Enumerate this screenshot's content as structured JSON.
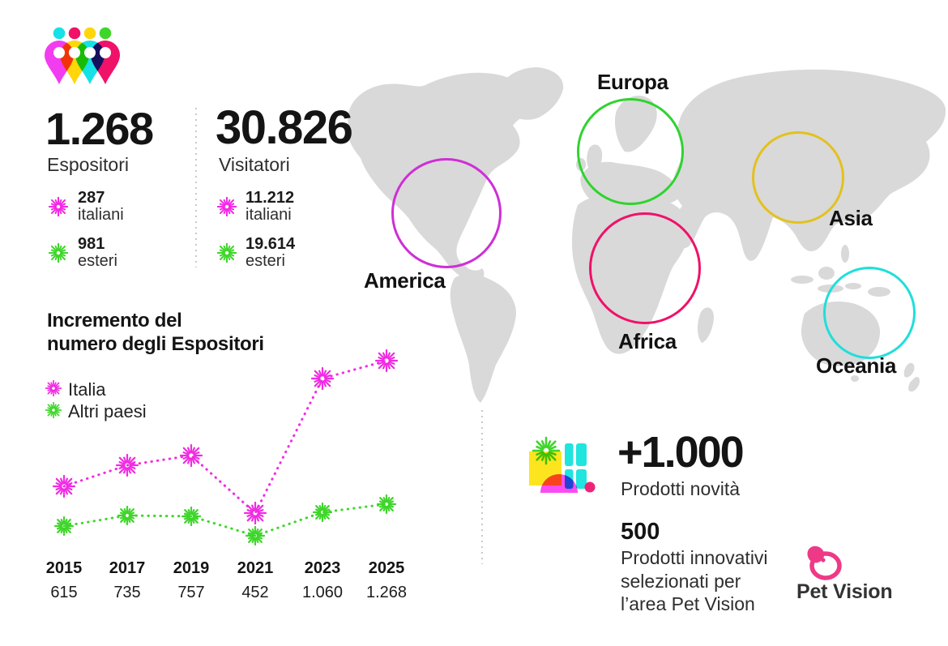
{
  "colors": {
    "text_dark": "#1A1A1A",
    "map_gray": "#D9D9D9",
    "divider": "#C9C9C9",
    "magenta": "#F22BE3",
    "green": "#3FD62B",
    "pin_magenta": "#F23CF0",
    "pin_yellow": "#FFD60A",
    "pin_cyan": "#17E0E6",
    "pin_crimson": "#F01168",
    "dot_cyan": "#17E0E6",
    "dot_crimson": "#F01168",
    "dot_yellow": "#FFD60A",
    "dot_green": "#3FD62B",
    "icon_yellow": "#FCE51E",
    "icon_cyan": "#1FE5DE",
    "icon_magenta": "#FA4BF0",
    "icon_green": "#3FD62B",
    "icon_dot_pink": "#F02277",
    "pet_pink": "#EE3A86"
  },
  "stats": {
    "espositori": {
      "value": "1.268",
      "label": "Espositori",
      "sub": [
        {
          "value": "287",
          "label": "italiani"
        },
        {
          "value": "981",
          "label": "esteri"
        }
      ]
    },
    "visitatori": {
      "value": "30.826",
      "label": "Visitatori",
      "sub": [
        {
          "value": "11.212",
          "label": "italiani"
        },
        {
          "value": "19.614",
          "label": "esteri"
        }
      ]
    }
  },
  "map": {
    "regions": [
      {
        "label": "America",
        "color": "#CE2FD6"
      },
      {
        "label": "Europa",
        "color": "#2FD32F"
      },
      {
        "label": "Africa",
        "color": "#F01168"
      },
      {
        "label": "Asia",
        "color": "#E3C11E"
      },
      {
        "label": "Oceania",
        "color": "#1FDFDB"
      }
    ]
  },
  "chart_data": {
    "type": "line",
    "title": "Incremento del numero degli Espositori",
    "title_lines": [
      "Incremento del",
      "numero degli Espositori"
    ],
    "categories": [
      "2015",
      "2017",
      "2019",
      "2021",
      "2023",
      "2025"
    ],
    "x_value_labels": [
      "615",
      "735",
      "757",
      "452",
      "1.060",
      "1.268"
    ],
    "series": [
      {
        "name": "Italia",
        "color": "#F22BE3",
        "rel_heights": [
          100,
          126,
          138,
          67,
          233,
          255
        ]
      },
      {
        "name": "Altri paesi",
        "color": "#3FD62B",
        "rel_heights": [
          51,
          64,
          63,
          39,
          68,
          78
        ]
      }
    ],
    "legend_position": "top-left",
    "grid": false,
    "y_axis": "hidden",
    "marker": "starburst",
    "line_style": "dotted"
  },
  "products": {
    "novita": {
      "value": "+1.000",
      "label": "Prodotti novità"
    },
    "innovativi": {
      "value": "500",
      "lines": [
        "Prodotti innovativi",
        "selezionati per",
        "l’area Pet Vision"
      ]
    }
  },
  "pet_vision": {
    "name": "Pet Vision"
  }
}
